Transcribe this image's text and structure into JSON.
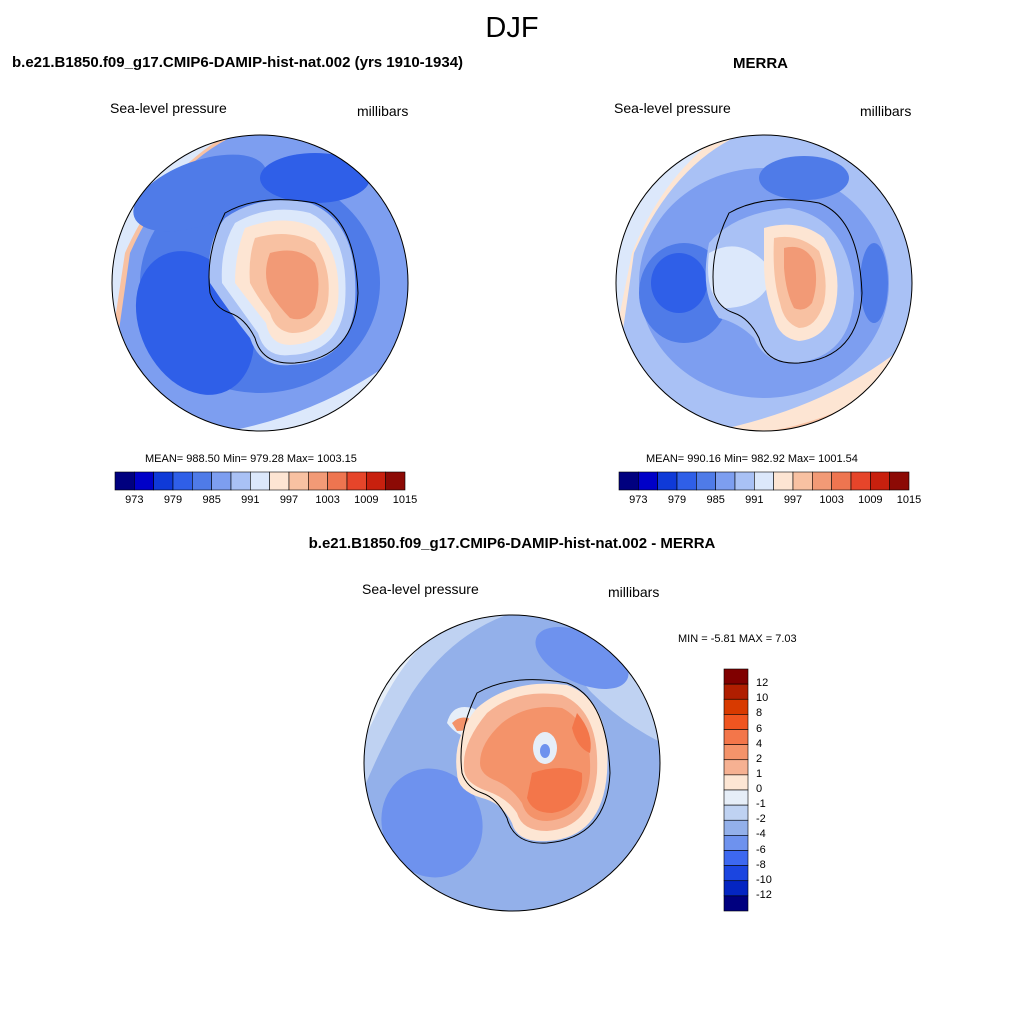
{
  "main_title": "DJF",
  "panels": [
    {
      "title": "b.e21.B1850.f09_g17.CMIP6-DAMIP-hist-nat.002 (yrs 1910-1934)",
      "left_label": "Sea-level pressure",
      "right_label": "millibars",
      "stats": "MEAN= 988.50  Min= 979.28  Max= 1003.15",
      "bar_labels": [
        "973",
        "979",
        "985",
        "991",
        "997",
        "1003",
        "1009",
        "1015"
      ]
    },
    {
      "title": "MERRA",
      "left_label": "Sea-level pressure",
      "right_label": "millibars",
      "stats": "MEAN= 990.16  Min= 982.92  Max= 1001.54",
      "bar_labels": [
        "973",
        "979",
        "985",
        "991",
        "997",
        "1003",
        "1009",
        "1015"
      ]
    },
    {
      "title": "b.e21.B1850.f09_g17.CMIP6-DAMIP-hist-nat.002 - MERRA",
      "left_label": "Sea-level pressure",
      "right_label": "millibars",
      "stats": "MIN =  -5.81 MAX =   7.03",
      "bar_labels": [
        "12",
        "10",
        "8",
        "6",
        "4",
        "2",
        "1",
        "0",
        "-1",
        "-2",
        "-4",
        "-6",
        "-8",
        "-10",
        "-12"
      ]
    }
  ],
  "abs_colors": [
    "#00007f",
    "#0000c8",
    "#0f3ad8",
    "#2f5fe8",
    "#4f7be8",
    "#7d9ef0",
    "#a9c1f5",
    "#dce8fb",
    "#fde5d3",
    "#f8c1a2",
    "#f29a76",
    "#ee7550",
    "#e6452a",
    "#c8200e",
    "#8c0a05"
  ],
  "diff_colors": [
    "#800000",
    "#b01e00",
    "#d83a00",
    "#f05520",
    "#f3764a",
    "#f4936a",
    "#f6b192",
    "#fde6d4",
    "#e6eef8",
    "#bfd2f2",
    "#93b0ea",
    "#6e92ee",
    "#3d68f0",
    "#1b45e0",
    "#0425c2",
    "#00007f"
  ]
}
